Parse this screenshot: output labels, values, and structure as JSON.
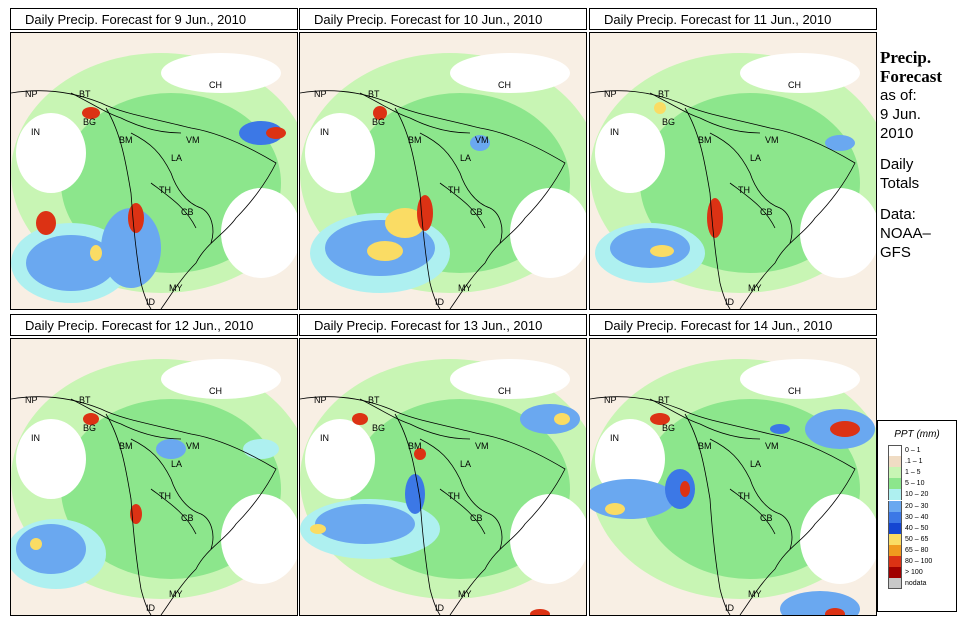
{
  "panels": [
    {
      "title": "Daily Precip. Forecast for  9 Jun., 2010"
    },
    {
      "title": "Daily Precip. Forecast for  10 Jun., 2010"
    },
    {
      "title": "Daily Precip. Forecast for  11 Jun., 2010"
    },
    {
      "title": "Daily Precip. Forecast for  12 Jun., 2010"
    },
    {
      "title": "Daily Precip. Forecast for  13 Jun., 2010"
    },
    {
      "title": "Daily Precip. Forecast for  14 Jun., 2010"
    }
  ],
  "map_labels": {
    "np": "NP",
    "bt": "BT",
    "in": "IN",
    "bg": "BG",
    "ch": "CH",
    "bm": "BM",
    "vm": "VM",
    "la": "LA",
    "th": "TH",
    "cb": "CB",
    "my": "MY",
    "id": "ID"
  },
  "side": {
    "title_line1": "Precip.",
    "title_line2": "Forecast",
    "line1": "as of:",
    "line2": "9 Jun.",
    "line3": "2010",
    "line4": "Daily",
    "line5": "Totals",
    "line6": "Data:",
    "line7": "NOAA–",
    "line8": "GFS"
  },
  "legend": {
    "title": "PPT (mm)",
    "items": [
      {
        "label": "0 – 1",
        "color": "#ffffff"
      },
      {
        "label": ".1 – 1",
        "color": "#f0dcc4"
      },
      {
        "label": "1 – 5",
        "color": "#c8f5b4"
      },
      {
        "label": "5 – 10",
        "color": "#8ce68c"
      },
      {
        "label": "10 – 20",
        "color": "#aef0f0"
      },
      {
        "label": "20 – 30",
        "color": "#6aa8f0"
      },
      {
        "label": "30 – 40",
        "color": "#3c78e6"
      },
      {
        "label": "40 – 50",
        "color": "#1446d2"
      },
      {
        "label": "50 – 65",
        "color": "#fadc64"
      },
      {
        "label": "65 – 80",
        "color": "#f09a1e"
      },
      {
        "label": "80 – 100",
        "color": "#dc3214"
      },
      {
        "label": "> 100",
        "color": "#a00000"
      },
      {
        "label": "nodata",
        "color": "#c8c8c8"
      }
    ]
  },
  "colors": {
    "white": "#ffffff",
    "tan": "#f0dcc4",
    "lightgreen": "#c8f5b4",
    "green": "#8ce68c",
    "cyan": "#aef0f0",
    "blue": "#6aa8f0",
    "blue2": "#3c78e6",
    "yellow": "#fadc64",
    "orange": "#f09a1e",
    "red": "#dc3214",
    "darkred": "#a00000"
  }
}
